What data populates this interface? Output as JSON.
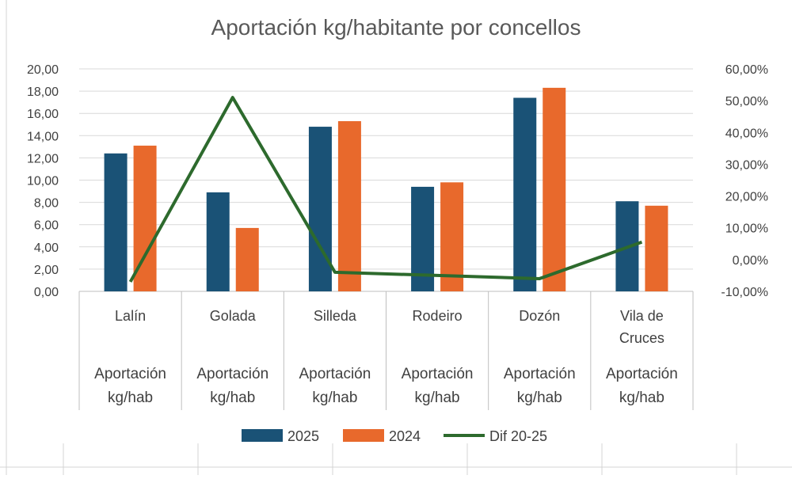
{
  "chart_data": {
    "type": "bar",
    "title": "Aportación kg/habitante por concellos",
    "categories": [
      "Lalín",
      "Golada",
      "Silleda",
      "Rodeiro",
      "Dozón",
      "Vila de Cruces"
    ],
    "category_lines": [
      [
        "Lalín"
      ],
      [
        "Golada"
      ],
      [
        "Silleda"
      ],
      [
        "Rodeiro"
      ],
      [
        "Dozón"
      ],
      [
        "Vila de",
        "Cruces"
      ]
    ],
    "sub_category_lines": [
      "Aportación",
      "kg/hab"
    ],
    "series": [
      {
        "name": "2025",
        "type": "bar",
        "axis": "left",
        "color": "#1a5276",
        "values": [
          12.4,
          8.9,
          14.8,
          9.4,
          17.4,
          8.1
        ]
      },
      {
        "name": "2024",
        "type": "bar",
        "axis": "left",
        "color": "#e8692c",
        "values": [
          13.1,
          5.7,
          15.3,
          9.8,
          18.3,
          7.7
        ]
      },
      {
        "name": "Dif 20-25",
        "type": "line",
        "axis": "right",
        "color": "#2d6a2d",
        "values": [
          -7.0,
          51.0,
          -4.0,
          -5.0,
          -6.0,
          5.5
        ]
      }
    ],
    "y_left": {
      "ylim": [
        0,
        20
      ],
      "ticks": [
        "0,00",
        "2,00",
        "4,00",
        "6,00",
        "8,00",
        "10,00",
        "12,00",
        "14,00",
        "16,00",
        "18,00",
        "20,00"
      ]
    },
    "y_right": {
      "ylim": [
        -10,
        60
      ],
      "ticks": [
        "-10,00%",
        "0,00%",
        "10,00%",
        "20,00%",
        "30,00%",
        "40,00%",
        "50,00%",
        "60,00%"
      ]
    },
    "grid": true,
    "legend_position": "bottom"
  }
}
